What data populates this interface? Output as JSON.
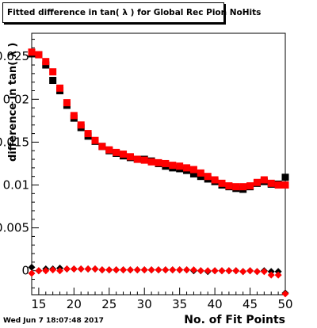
{
  "header": {
    "title": "Fitted difference in tan( λ ) for Global Rec Pion NoHits"
  },
  "footer": {
    "timestamp": "Wed Jun  7 18:07:48 2017"
  },
  "chart_data": {
    "type": "scatter",
    "title": "Fitted difference in tan( λ ) for Global Rec Pion NoHits",
    "xlabel": "No. of Fit Points",
    "ylabel": "difference in tan( λ )",
    "xlim": [
      14,
      50
    ],
    "ylim": [
      -0.0028,
      0.0277
    ],
    "x_ticks": [
      15,
      20,
      25,
      30,
      35,
      40,
      45,
      50
    ],
    "y_ticks": [
      0,
      0.005,
      0.01,
      0.015,
      0.02,
      0.025
    ],
    "x_tick_labels": [
      "15",
      "20",
      "25",
      "30",
      "35",
      "40",
      "45",
      "50"
    ],
    "y_tick_labels": [
      "0",
      "0.005",
      "0.01",
      "0.015",
      "0.02",
      "0.025"
    ],
    "grid": false,
    "colors": {
      "black": "#000000",
      "red": "#ff0000"
    },
    "series": [
      {
        "color": "black",
        "marker": "square",
        "points": [
          [
            14,
            0.0253
          ],
          [
            15,
            0.0252
          ],
          [
            16,
            0.024
          ],
          [
            17,
            0.0222
          ],
          [
            18,
            0.021
          ],
          [
            19,
            0.0193
          ],
          [
            20,
            0.0178
          ],
          [
            21,
            0.0167
          ],
          [
            22,
            0.0157
          ],
          [
            23,
            0.0151
          ],
          [
            24,
            0.0145
          ],
          [
            25,
            0.014
          ],
          [
            26,
            0.0137
          ],
          [
            27,
            0.0134
          ],
          [
            28,
            0.0132
          ],
          [
            29,
            0.013
          ],
          [
            30,
            0.013
          ],
          [
            31,
            0.0128
          ],
          [
            32,
            0.0125
          ],
          [
            33,
            0.0122
          ],
          [
            34,
            0.012
          ],
          [
            35,
            0.0119
          ],
          [
            36,
            0.0117
          ],
          [
            37,
            0.0113
          ],
          [
            38,
            0.011
          ],
          [
            39,
            0.0107
          ],
          [
            40,
            0.0104
          ],
          [
            41,
            0.01
          ],
          [
            42,
            0.0098
          ],
          [
            43,
            0.0096
          ],
          [
            44,
            0.0095
          ],
          [
            45,
            0.0098
          ],
          [
            46,
            0.0102
          ],
          [
            47,
            0.0104
          ],
          [
            48,
            0.0101
          ],
          [
            49,
            0.0101
          ],
          [
            50,
            0.0109
          ]
        ]
      },
      {
        "color": "red",
        "marker": "square",
        "points": [
          [
            14,
            0.0255
          ],
          [
            15,
            0.0252
          ],
          [
            16,
            0.0244
          ],
          [
            17,
            0.0232
          ],
          [
            18,
            0.0213
          ],
          [
            19,
            0.0196
          ],
          [
            20,
            0.0181
          ],
          [
            21,
            0.017
          ],
          [
            22,
            0.016
          ],
          [
            23,
            0.0152
          ],
          [
            24,
            0.0145
          ],
          [
            25,
            0.0141
          ],
          [
            26,
            0.0138
          ],
          [
            27,
            0.0136
          ],
          [
            28,
            0.0133
          ],
          [
            29,
            0.013
          ],
          [
            30,
            0.0129
          ],
          [
            31,
            0.0127
          ],
          [
            32,
            0.0126
          ],
          [
            33,
            0.0125
          ],
          [
            34,
            0.0123
          ],
          [
            35,
            0.0122
          ],
          [
            36,
            0.012
          ],
          [
            37,
            0.0118
          ],
          [
            38,
            0.0114
          ],
          [
            39,
            0.011
          ],
          [
            40,
            0.0106
          ],
          [
            41,
            0.0102
          ],
          [
            42,
            0.0099
          ],
          [
            43,
            0.0098
          ],
          [
            44,
            0.0098
          ],
          [
            45,
            0.0099
          ],
          [
            46,
            0.0103
          ],
          [
            47,
            0.0106
          ],
          [
            48,
            0.0102
          ],
          [
            49,
            0.01
          ],
          [
            50,
            0.01
          ]
        ]
      },
      {
        "color": "black",
        "marker": "diamond",
        "points": [
          [
            14,
            0.0004
          ],
          [
            15,
            0.0
          ],
          [
            16,
            0.0002
          ],
          [
            17,
            0.0002
          ],
          [
            18,
            0.0003
          ],
          [
            19,
            0.0002
          ],
          [
            20,
            0.0002
          ],
          [
            21,
            0.0002
          ],
          [
            22,
            0.0002
          ],
          [
            23,
            0.0002
          ],
          [
            24,
            0.0001
          ],
          [
            25,
            0.0001
          ],
          [
            26,
            0.0001
          ],
          [
            27,
            0.0001
          ],
          [
            28,
            0.0001
          ],
          [
            29,
            0.0001
          ],
          [
            30,
            0.0001
          ],
          [
            31,
            0.0001
          ],
          [
            32,
            0.0001
          ],
          [
            33,
            0.0001
          ],
          [
            34,
            0.0001
          ],
          [
            35,
            0.0001
          ],
          [
            36,
            0.0001
          ],
          [
            37,
            0.0
          ],
          [
            38,
            0.0
          ],
          [
            39,
            -0.0001
          ],
          [
            40,
            0.0
          ],
          [
            41,
            0.0
          ],
          [
            42,
            0.0
          ],
          [
            43,
            0.0
          ],
          [
            44,
            -0.0001
          ],
          [
            45,
            0.0
          ],
          [
            46,
            -0.0001
          ],
          [
            47,
            0.0
          ],
          [
            48,
            -0.0001
          ],
          [
            49,
            -0.0001
          ],
          [
            50,
            -0.0026
          ]
        ]
      },
      {
        "color": "red",
        "marker": "diamond",
        "points": [
          [
            14,
            -0.0003
          ],
          [
            15,
            0.0
          ],
          [
            16,
            0.0
          ],
          [
            17,
            0.0001
          ],
          [
            18,
            0.0
          ],
          [
            19,
            0.0002
          ],
          [
            20,
            0.0002
          ],
          [
            21,
            0.0002
          ],
          [
            22,
            0.0002
          ],
          [
            23,
            0.0002
          ],
          [
            24,
            0.0001
          ],
          [
            25,
            0.0001
          ],
          [
            26,
            0.0001
          ],
          [
            27,
            0.0001
          ],
          [
            28,
            0.0001
          ],
          [
            29,
            0.0001
          ],
          [
            30,
            0.0001
          ],
          [
            31,
            0.0001
          ],
          [
            32,
            0.0001
          ],
          [
            33,
            0.0001
          ],
          [
            34,
            0.0001
          ],
          [
            35,
            0.0001
          ],
          [
            36,
            0.0001
          ],
          [
            37,
            0.0001
          ],
          [
            38,
            0.0
          ],
          [
            39,
            0.0
          ],
          [
            40,
            0.0
          ],
          [
            41,
            0.0
          ],
          [
            42,
            0.0
          ],
          [
            43,
            0.0
          ],
          [
            44,
            -0.0001
          ],
          [
            45,
            0.0
          ],
          [
            46,
            -0.0001
          ],
          [
            47,
            -0.0001
          ],
          [
            48,
            -0.0005
          ],
          [
            49,
            -0.0005
          ],
          [
            50,
            -0.0027
          ]
        ]
      }
    ]
  }
}
